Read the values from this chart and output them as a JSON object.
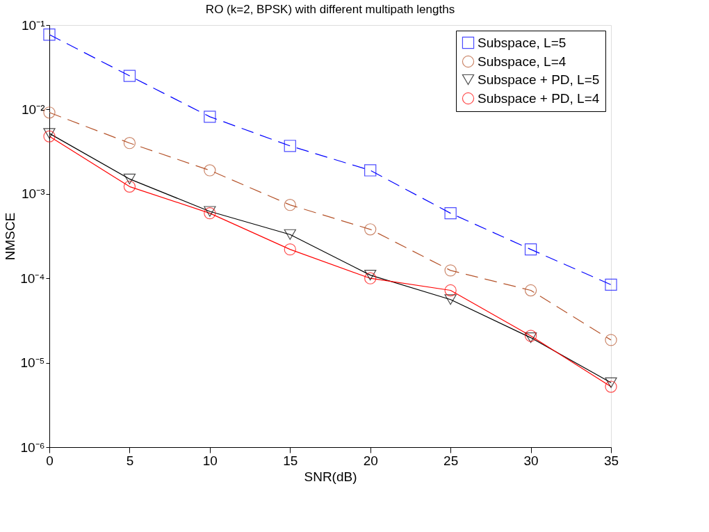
{
  "chart_data": {
    "type": "line",
    "title": "RO (k=2, BPSK) with different multipath lengths",
    "xlabel": "SNR(dB)",
    "ylabel": "NMSCE",
    "x": [
      0,
      5,
      10,
      15,
      20,
      25,
      30,
      35
    ],
    "series": [
      {
        "name": "Subspace, L=5",
        "color": "#0000ff",
        "marker": "square",
        "line_style": "dashed",
        "values": [
          0.077,
          0.025,
          0.0082,
          0.0037,
          0.0019,
          0.00059,
          0.00022,
          8.4e-05
        ]
      },
      {
        "name": "Subspace, L=4",
        "color": "#b5532a",
        "marker": "circle",
        "line_style": "dashed",
        "values": [
          0.0092,
          0.004,
          0.0019,
          0.00074,
          0.00038,
          0.000124,
          7.2e-05,
          1.86e-05
        ]
      },
      {
        "name": "Subspace + PD, L=5",
        "color": "#000000",
        "marker": "triangle-down",
        "line_style": "solid",
        "values": [
          0.0052,
          0.0015,
          0.00062,
          0.00033,
          0.000109,
          5.6e-05,
          1.98e-05,
          5.8e-06
        ]
      },
      {
        "name": "Subspace + PD, L=4",
        "color": "#ff0000",
        "marker": "circle",
        "line_style": "solid",
        "values": [
          0.0048,
          0.00122,
          0.00059,
          0.00022,
          0.0001,
          7.2e-05,
          2.08e-05,
          5.2e-06
        ]
      }
    ],
    "xlim": [
      0,
      35
    ],
    "xticks": [
      0,
      5,
      10,
      15,
      20,
      25,
      30,
      35
    ],
    "ylim": [
      1e-06,
      0.1
    ],
    "log": true,
    "yticks": [
      {
        "value": 1e-06,
        "label": "10⁻⁶"
      },
      {
        "value": 1e-05,
        "label": "10⁻⁵"
      },
      {
        "value": 0.0001,
        "label": "10⁻⁴"
      },
      {
        "value": 0.001,
        "label": "10⁻³"
      },
      {
        "value": 0.01,
        "label": "10⁻²"
      },
      {
        "value": 0.1,
        "label": "10⁻¹"
      }
    ],
    "grid": false,
    "legend": "top right"
  }
}
